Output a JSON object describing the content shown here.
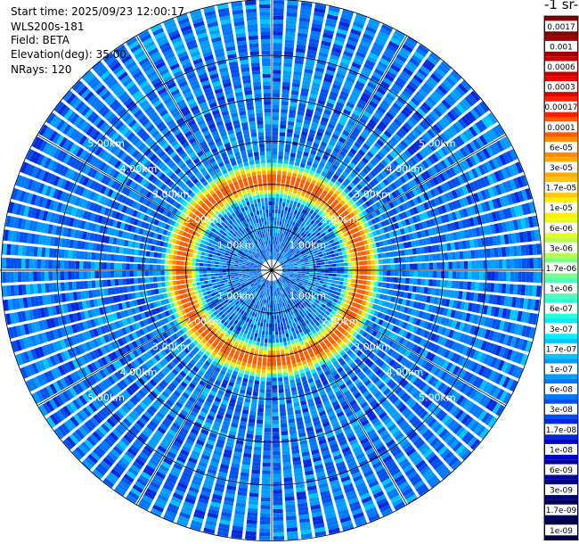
{
  "header": {
    "start_time": "Start time: 2025/09/23 12:00:17",
    "device": "WLS200s-181",
    "field": "Field: BETA",
    "elevation": "Elevation(deg): 35.00",
    "nrays": "NRays: 120"
  },
  "colorbar": {
    "unit_fragment": "-1 sr-",
    "labels": [
      "0.0017",
      "0.001",
      "0.0006",
      "0.0003",
      "0.00017",
      "0.0001",
      "6e-05",
      "3e-05",
      "1.7e-05",
      "1e-05",
      "6e-06",
      "3e-06",
      "1.7e-06",
      "1e-06",
      "6e-07",
      "3e-07",
      "1.7e-07",
      "1e-07",
      "6e-08",
      "3e-08",
      "1.7e-08",
      "1e-08",
      "6e-09",
      "3e-09",
      "1.7e-09",
      "1e-09"
    ],
    "colors": [
      "#800000",
      "#a00000",
      "#c80000",
      "#e60000",
      "#ff2000",
      "#ff5a00",
      "#ff8c00",
      "#ffaa00",
      "#ffc800",
      "#fff000",
      "#e6ff20",
      "#b4ff50",
      "#78ff8c",
      "#50ffb4",
      "#28ffdc",
      "#00f0ff",
      "#00c8ff",
      "#009cff",
      "#0078ff",
      "#0050f0",
      "#0028dc",
      "#0000c8",
      "#0000a0",
      "#000080",
      "#00005a",
      "#000046"
    ]
  },
  "chart_data": {
    "type": "heatmap",
    "projection": "polar (PPI scan)",
    "field": "BETA",
    "elevation_deg": 35.0,
    "n_rays": 120,
    "range_rings_km": [
      1,
      2,
      3,
      4,
      5
    ],
    "range_ring_labels": [
      "1.00km",
      "2.00km",
      "3.00km",
      "4.00km",
      "5.00km"
    ],
    "max_range_km": 6.3,
    "background_beta_approx": 6e-08,
    "enhanced_layer_range_km": [
      1.95,
      2.2
    ],
    "enhanced_layer_beta_peak": 0.0001,
    "near_range_beta_approx": 6e-08,
    "color_scale": "log",
    "color_range": [
      1e-09,
      0.0017
    ],
    "grid": true
  }
}
